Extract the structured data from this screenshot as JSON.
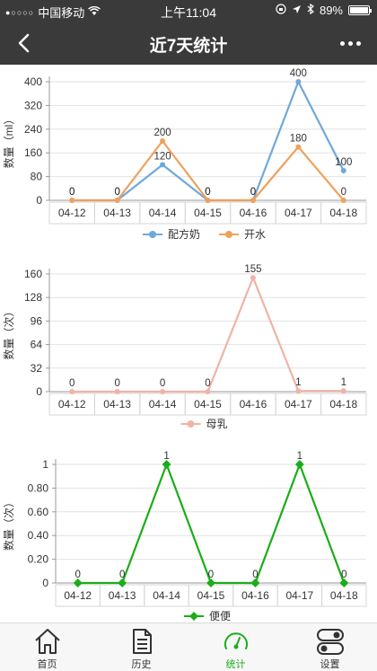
{
  "status_bar": {
    "carrier": "中国移动",
    "time": "上午11:04",
    "battery": "89%",
    "battery_level": 0.89
  },
  "nav": {
    "title": "近7天统计",
    "back_icon": "chevron-left-icon",
    "more_icon": "more-dots-icon"
  },
  "tabs": [
    {
      "label": "首页",
      "icon": "home-icon",
      "active": false
    },
    {
      "label": "历史",
      "icon": "document-icon",
      "active": false
    },
    {
      "label": "统计",
      "icon": "gauge-icon",
      "active": true
    },
    {
      "label": "设置",
      "icon": "toggle-icon",
      "active": false
    }
  ],
  "chart_data": [
    {
      "type": "line",
      "categories": [
        "04-12",
        "04-13",
        "04-14",
        "04-15",
        "04-16",
        "04-17",
        "04-18"
      ],
      "ylabel": "数量（ml）",
      "ylim": [
        0,
        400
      ],
      "yticks": [
        "0",
        "80",
        "160",
        "240",
        "320",
        "400"
      ],
      "legend_position": "bottom-center",
      "grid": true,
      "series": [
        {
          "name": "配方奶",
          "color": "#6fa8dc",
          "values": [
            0,
            0,
            120,
            0,
            0,
            400,
            100
          ]
        },
        {
          "name": "开水",
          "color": "#f0a05a",
          "values": [
            0,
            0,
            200,
            0,
            0,
            180,
            0
          ]
        }
      ]
    },
    {
      "type": "line",
      "categories": [
        "04-12",
        "04-13",
        "04-14",
        "04-15",
        "04-16",
        "04-17",
        "04-18"
      ],
      "ylabel": "数量（次）",
      "ylim": [
        0,
        160
      ],
      "yticks": [
        "0",
        "32",
        "64",
        "96",
        "128",
        "160"
      ],
      "legend_position": "bottom-center",
      "grid": true,
      "series": [
        {
          "name": "母乳",
          "color": "#f0b3a5",
          "values": [
            0,
            0,
            0,
            0,
            155,
            1,
            1
          ]
        }
      ]
    },
    {
      "type": "line",
      "categories": [
        "04-12",
        "04-13",
        "04-14",
        "04-15",
        "04-16",
        "04-17",
        "04-18"
      ],
      "ylabel": "数量（次）",
      "ylim": [
        0,
        1
      ],
      "yticks": [
        "0",
        "0.20",
        "0.40",
        "0.60",
        "0.80",
        "1"
      ],
      "legend_position": "bottom-center",
      "grid": true,
      "series": [
        {
          "name": "便便",
          "color": "#1aad19",
          "values": [
            0,
            0,
            1,
            0,
            0,
            1,
            0
          ]
        }
      ]
    }
  ]
}
